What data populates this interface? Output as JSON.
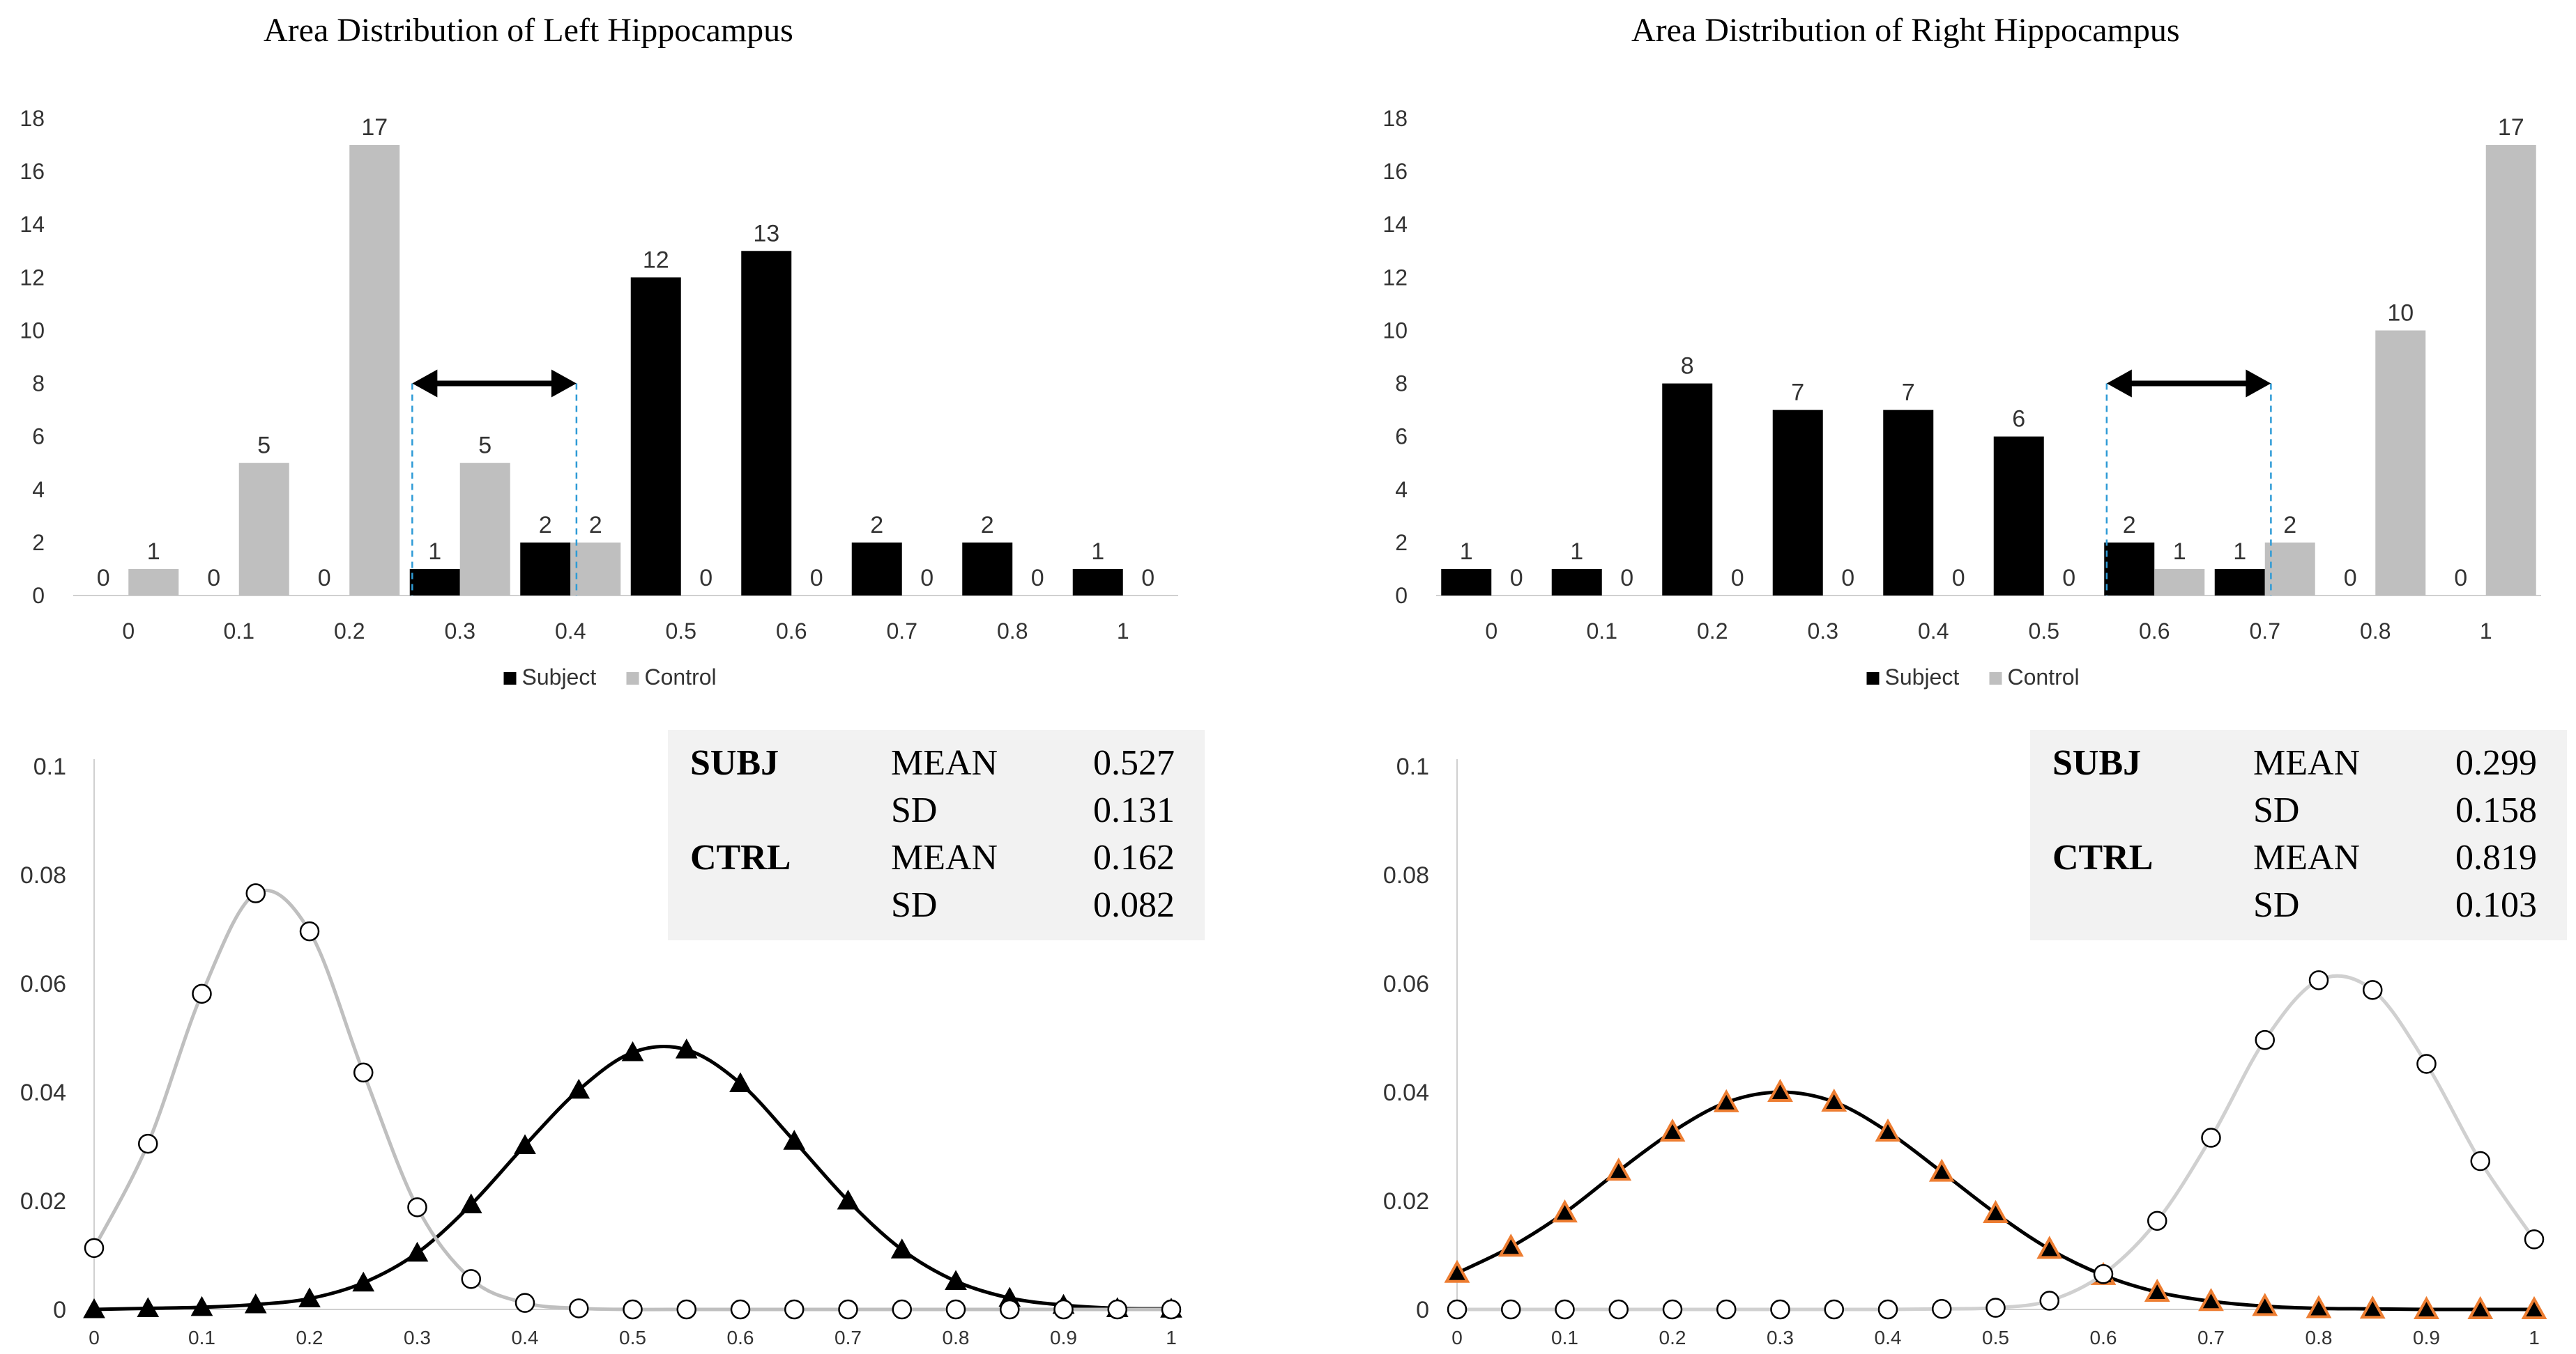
{
  "chart_data": [
    {
      "type": "bar",
      "title": "Area Distribution  of Left Hippocampus",
      "categories": [
        "0",
        "0.1",
        "0.2",
        "0.3",
        "0.4",
        "0.5",
        "0.6",
        "0.7",
        "0.8",
        "1"
      ],
      "series": [
        {
          "name": "Subject",
          "color": "#000000",
          "values": [
            0,
            0,
            0,
            1,
            2,
            12,
            13,
            2,
            2,
            1
          ]
        },
        {
          "name": "Control",
          "color": "#bfbfbf",
          "values": [
            1,
            5,
            17,
            5,
            2,
            0,
            0,
            0,
            0,
            0
          ]
        }
      ],
      "ylim": [
        0,
        18
      ],
      "yticks": [
        "0",
        "2",
        "4",
        "6",
        "8",
        "10",
        "12",
        "14",
        "16",
        "18"
      ],
      "legend": "bottom",
      "annotation": {
        "type": "double-arrow",
        "from_category": "0.3",
        "to_category": "0.4",
        "y": 8
      }
    },
    {
      "type": "bar",
      "title": "Area Distribution  of Right Hippocampus",
      "categories": [
        "0",
        "0.1",
        "0.2",
        "0.3",
        "0.4",
        "0.5",
        "0.6",
        "0.7",
        "0.8",
        "1"
      ],
      "series": [
        {
          "name": "Subject",
          "color": "#000000",
          "values": [
            1,
            1,
            8,
            7,
            7,
            6,
            2,
            1,
            0,
            0
          ]
        },
        {
          "name": "Control",
          "color": "#bfbfbf",
          "values": [
            0,
            0,
            0,
            0,
            0,
            0,
            1,
            2,
            10,
            17
          ]
        }
      ],
      "ylim": [
        0,
        18
      ],
      "yticks": [
        "0",
        "2",
        "4",
        "6",
        "8",
        "10",
        "12",
        "14",
        "16",
        "18"
      ],
      "legend": "bottom",
      "annotation": {
        "type": "double-arrow",
        "from_category": "0.6",
        "to_category": "0.7",
        "y": 8
      }
    },
    {
      "type": "line",
      "x": [
        0,
        0.05,
        0.1,
        0.15,
        0.2,
        0.25,
        0.3,
        0.35,
        0.4,
        0.45,
        0.5,
        0.55,
        0.6,
        0.65,
        0.7,
        0.75,
        0.8,
        0.85,
        0.9,
        0.95,
        1
      ],
      "xticks": [
        "0",
        "0.1",
        "0.2",
        "0.3",
        "0.4",
        "0.5",
        "0.6",
        "0.7",
        "0.8",
        "0.9",
        "1"
      ],
      "yticks": [
        "0",
        "0.02",
        "0.04",
        "0.06",
        "0.08",
        "0.1"
      ],
      "ylim": [
        0,
        0.1
      ],
      "xlim": [
        0,
        1
      ],
      "series": [
        {
          "name": "SUBJ",
          "mean": 0.527,
          "sd": 0.131,
          "color": "#000000",
          "marker": "triangle",
          "marker_fill": "#000000",
          "values": [
            0.0,
            0.0002,
            0.0004,
            0.0009,
            0.002,
            0.0049,
            0.0104,
            0.0193,
            0.0302,
            0.0404,
            0.0473,
            0.0478,
            0.0416,
            0.031,
            0.02,
            0.011,
            0.0052,
            0.0021,
            0.0008,
            0.0002,
            0.0001
          ]
        },
        {
          "name": "CTRL",
          "mean": 0.162,
          "sd": 0.082,
          "color": "#bfbfbf",
          "marker": "circle",
          "marker_fill": "#ffffff",
          "values": [
            0.0113,
            0.0305,
            0.0581,
            0.0766,
            0.0696,
            0.0436,
            0.0188,
            0.0056,
            0.0012,
            0.0002,
            0.0,
            0.0,
            0.0,
            0.0,
            0.0,
            0.0,
            0.0,
            0.0,
            0.0,
            0.0,
            0.0
          ]
        }
      ],
      "stats_table": {
        "rows": [
          {
            "group": "SUBJ",
            "stat": "MEAN",
            "value": "0.527"
          },
          {
            "group": "",
            "stat": "SD",
            "value": "0.131"
          },
          {
            "group": "CTRL",
            "stat": "MEAN",
            "value": "0.162"
          },
          {
            "group": "",
            "stat": "SD",
            "value": "0.082"
          }
        ]
      }
    },
    {
      "type": "line",
      "x": [
        0,
        0.05,
        0.1,
        0.15,
        0.2,
        0.25,
        0.3,
        0.35,
        0.4,
        0.45,
        0.5,
        0.55,
        0.6,
        0.65,
        0.7,
        0.75,
        0.8,
        0.85,
        0.9,
        0.95,
        1
      ],
      "xticks": [
        "0",
        "0.1",
        "0.2",
        "0.3",
        "0.4",
        "0.5",
        "0.6",
        "0.7",
        "0.8",
        "0.9",
        "1"
      ],
      "yticks": [
        "0",
        "0.02",
        "0.04",
        "0.06",
        "0.08",
        "0.1"
      ],
      "ylim": [
        0,
        0.1
      ],
      "xlim": [
        0,
        1
      ],
      "series": [
        {
          "name": "SUBJ",
          "mean": 0.299,
          "sd": 0.158,
          "color": "#000000",
          "marker": "triangle",
          "marker_fill": "#000000",
          "marker_stroke": "#ed7d31",
          "values": [
            0.0067,
            0.0115,
            0.0178,
            0.0255,
            0.0327,
            0.0381,
            0.04,
            0.0382,
            0.0327,
            0.0253,
            0.0177,
            0.0111,
            0.0063,
            0.0032,
            0.0015,
            0.0006,
            0.0002,
            0.0001,
            0.0,
            0.0,
            0.0
          ]
        },
        {
          "name": "CTRL",
          "mean": 0.819,
          "sd": 0.103,
          "color": "#d0d0d0",
          "marker": "circle",
          "marker_fill": "#ffffff",
          "values": [
            0.0,
            0.0,
            0.0,
            0.0,
            0.0,
            0.0,
            0.0,
            0.0,
            0.0,
            0.0001,
            0.0003,
            0.0016,
            0.0065,
            0.0163,
            0.0316,
            0.0496,
            0.0606,
            0.0588,
            0.0452,
            0.0273,
            0.0129
          ]
        }
      ],
      "stats_table": {
        "rows": [
          {
            "group": "SUBJ",
            "stat": "MEAN",
            "value": "0.299"
          },
          {
            "group": "",
            "stat": "SD",
            "value": "0.158"
          },
          {
            "group": "CTRL",
            "stat": "MEAN",
            "value": "0.819"
          },
          {
            "group": "",
            "stat": "SD",
            "value": "0.103"
          }
        ]
      }
    }
  ]
}
